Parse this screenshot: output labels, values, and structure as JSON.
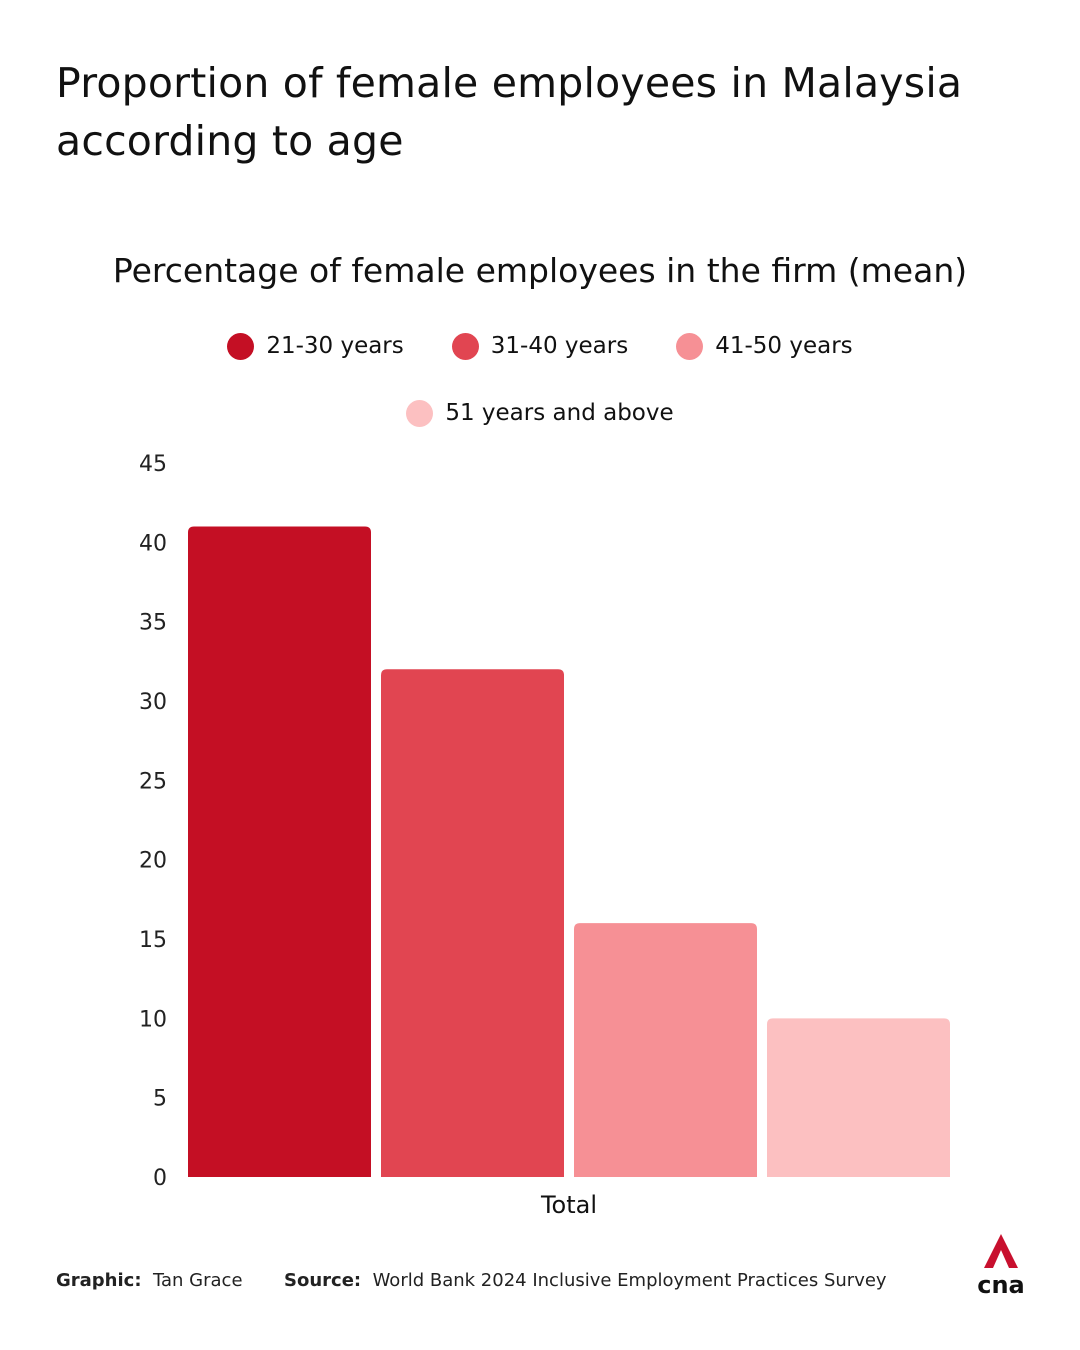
{
  "title": "Proportion of female employees in Malaysia according to age",
  "footer": {
    "graphic_label": "Graphic:",
    "graphic_value": "Tan Grace",
    "source_label": "Source:",
    "source_value": "World Bank 2024 Inclusive Employment Practices Survey"
  },
  "logo": {
    "text": "cna",
    "icon": "cna-logo-icon",
    "color": "#c8102e"
  },
  "chart_data": {
    "type": "bar",
    "title": "Percentage of female employees in the firm (mean)",
    "categories": [
      "Total"
    ],
    "series": [
      {
        "name": "21-30 years",
        "values": [
          41
        ],
        "color": "#c40f24"
      },
      {
        "name": "31-40 years",
        "values": [
          32
        ],
        "color": "#e14551"
      },
      {
        "name": "41-50 years",
        "values": [
          16
        ],
        "color": "#f69095"
      },
      {
        "name": "51 years and above",
        "values": [
          10
        ],
        "color": "#fcc0c1"
      }
    ],
    "ylim": [
      0,
      45
    ],
    "yticks": [
      0,
      5,
      10,
      15,
      20,
      25,
      30,
      35,
      40,
      45
    ],
    "xlabel": "",
    "ylabel": "",
    "grid": false,
    "legend_placement": "top-center"
  }
}
